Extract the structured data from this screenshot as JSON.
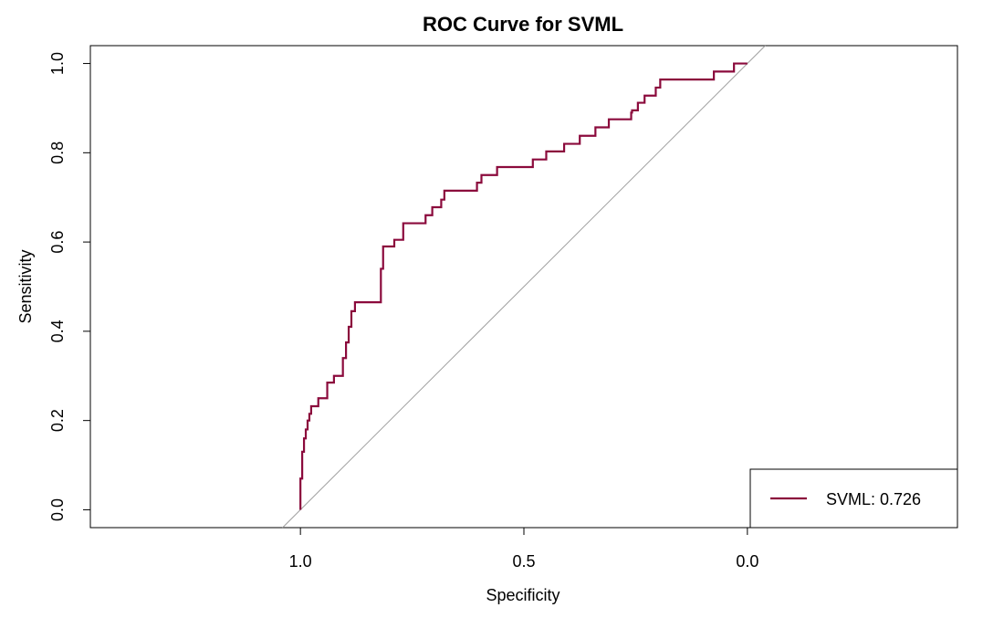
{
  "chart_data": {
    "type": "line",
    "title": "ROC Curve for SVML",
    "xlabel": "Specificity",
    "ylabel": "Sensitivity",
    "xlim": [
      1.47,
      -0.47
    ],
    "ylim": [
      -0.04,
      1.04
    ],
    "x_ticks": [
      1.0,
      0.5,
      0.0
    ],
    "x_tick_labels": [
      "1.0",
      "0.5",
      "0.0"
    ],
    "y_ticks": [
      0.0,
      0.2,
      0.4,
      0.6,
      0.8,
      1.0
    ],
    "y_tick_labels": [
      "0.0",
      "0.2",
      "0.4",
      "0.6",
      "0.8",
      "1.0"
    ],
    "diagonal_reference": {
      "color": "#a0a0a0",
      "points": [
        [
          1.04,
          -0.04
        ],
        [
          -0.04,
          1.04
        ]
      ]
    },
    "series": [
      {
        "name": "SVML",
        "auc_label": "SVML: 0.726",
        "color": "#8b0a3c",
        "specificity": [
          1.0,
          1.0,
          0.996,
          0.996,
          0.992,
          0.992,
          0.988,
          0.988,
          0.984,
          0.984,
          0.98,
          0.98,
          0.976,
          0.976,
          0.96,
          0.96,
          0.94,
          0.94,
          0.925,
          0.925,
          0.905,
          0.905,
          0.898,
          0.898,
          0.892,
          0.892,
          0.886,
          0.886,
          0.878,
          0.878,
          0.873,
          0.873,
          0.82,
          0.82,
          0.815,
          0.815,
          0.79,
          0.79,
          0.77,
          0.77,
          0.72,
          0.72,
          0.705,
          0.705,
          0.685,
          0.685,
          0.678,
          0.678,
          0.605,
          0.605,
          0.595,
          0.595,
          0.56,
          0.56,
          0.48,
          0.48,
          0.45,
          0.45,
          0.41,
          0.41,
          0.375,
          0.375,
          0.34,
          0.34,
          0.31,
          0.31,
          0.26,
          0.26,
          0.258,
          0.258,
          0.245,
          0.245,
          0.23,
          0.23,
          0.205,
          0.205,
          0.195,
          0.195,
          0.075,
          0.075,
          0.03,
          0.03,
          0.0
        ],
        "sensitivity": [
          0.0,
          0.07,
          0.07,
          0.13,
          0.13,
          0.16,
          0.16,
          0.18,
          0.18,
          0.2,
          0.2,
          0.215,
          0.215,
          0.232,
          0.232,
          0.25,
          0.25,
          0.285,
          0.285,
          0.3,
          0.3,
          0.34,
          0.34,
          0.375,
          0.375,
          0.41,
          0.41,
          0.445,
          0.445,
          0.465,
          0.465,
          0.465,
          0.465,
          0.54,
          0.54,
          0.59,
          0.59,
          0.605,
          0.605,
          0.642,
          0.642,
          0.66,
          0.66,
          0.678,
          0.678,
          0.695,
          0.695,
          0.715,
          0.715,
          0.733,
          0.733,
          0.75,
          0.75,
          0.768,
          0.768,
          0.785,
          0.785,
          0.803,
          0.803,
          0.82,
          0.82,
          0.838,
          0.838,
          0.857,
          0.857,
          0.875,
          0.875,
          0.89,
          0.89,
          0.895,
          0.895,
          0.912,
          0.912,
          0.928,
          0.928,
          0.946,
          0.946,
          0.964,
          0.964,
          0.982,
          0.982,
          1.0,
          1.0
        ]
      }
    ],
    "legend": {
      "position": "bottom-right",
      "entries": [
        "SVML: 0.726"
      ]
    }
  }
}
